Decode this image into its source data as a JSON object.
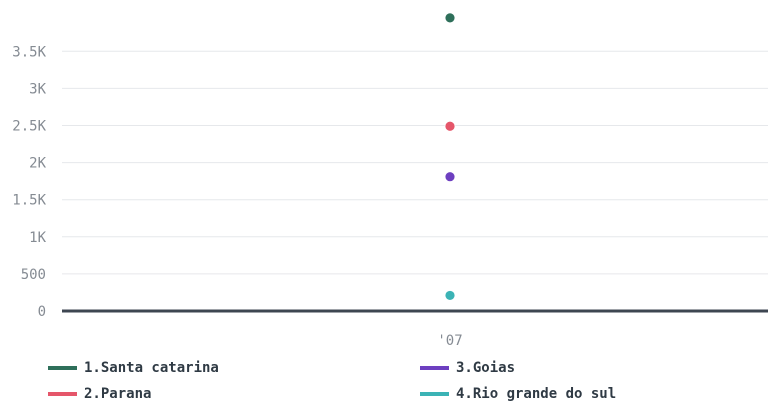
{
  "chart_data": {
    "type": "scatter",
    "title": "",
    "xlabel": "",
    "ylabel": "",
    "categories": [
      "'07"
    ],
    "ylim": [
      0,
      4000
    ],
    "yticks": [
      0,
      500,
      1000,
      1500,
      2000,
      2500,
      3000,
      3500
    ],
    "ytick_labels": [
      "0",
      "500",
      "1K",
      "1.5K",
      "2K",
      "2.5K",
      "3K",
      "3.5K"
    ],
    "grid": true,
    "legend_position": "bottom",
    "series": [
      {
        "name": "1.Santa catarina",
        "color": "#2e6f5a",
        "values": [
          3950
        ]
      },
      {
        "name": "2.Parana",
        "color": "#e5566a",
        "values": [
          2490
        ]
      },
      {
        "name": "3.Goias",
        "color": "#6d3fc0",
        "values": [
          1810
        ]
      },
      {
        "name": "4.Rio grande do sul",
        "color": "#3bb3b5",
        "values": [
          210
        ]
      }
    ]
  }
}
